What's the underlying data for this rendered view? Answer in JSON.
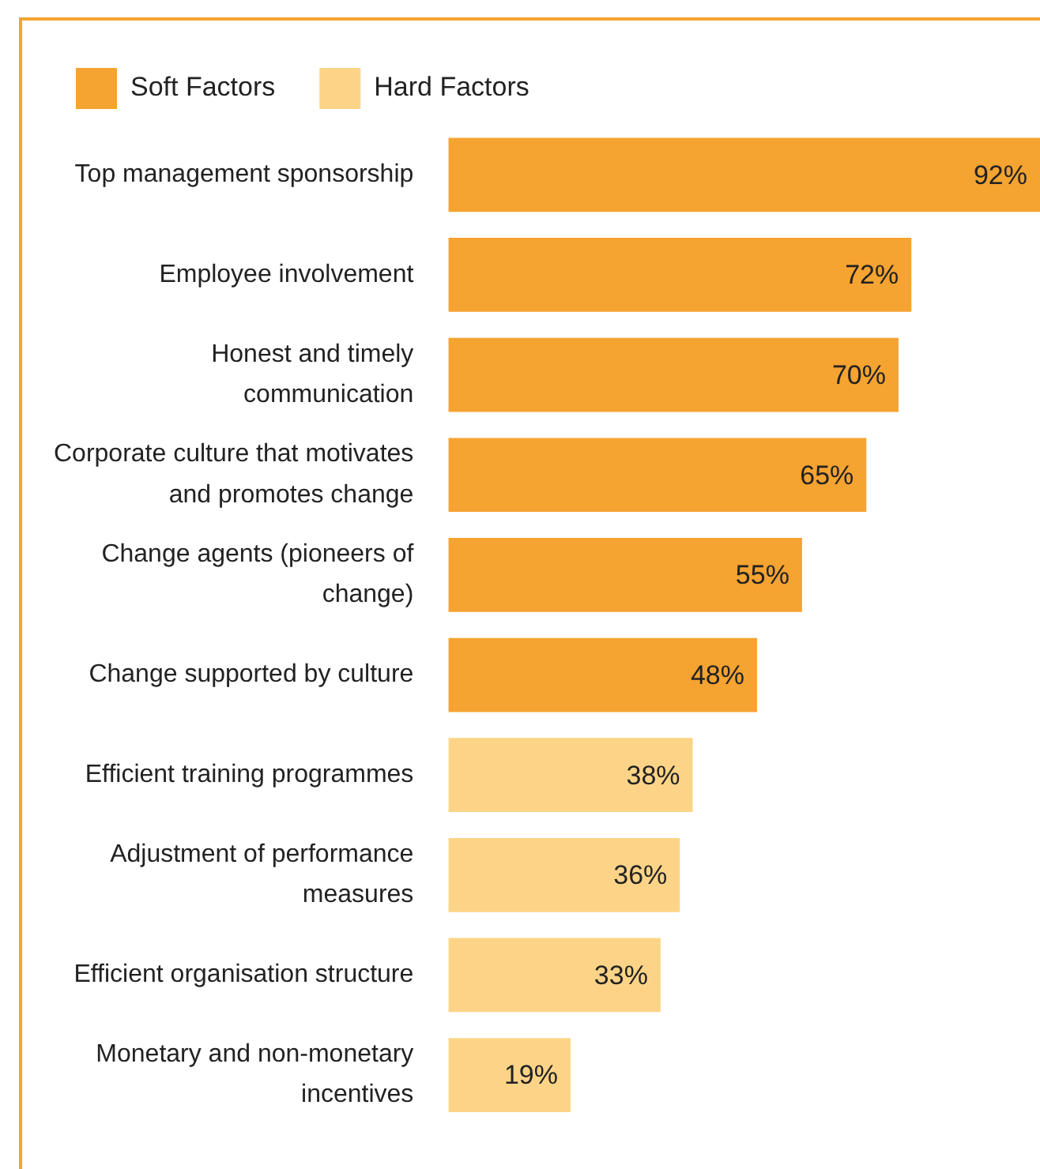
{
  "chart_data": {
    "type": "bar",
    "orientation": "horizontal",
    "legend": "top left",
    "categories": [
      "Top management sponsorship",
      "Employee involvement",
      "Honest and timely communication",
      "Corporate culture that motivates and promotes change",
      "Change agents (pioneers of change)",
      "Change supported by culture",
      "Efficient training programmes",
      "Adjustment of performance measures",
      "Efficient organisation structure",
      "Monetary and non-monetary incentives"
    ],
    "series": [
      {
        "name": "Soft Factors",
        "color": "#f5a331",
        "values": [
          92,
          72,
          70,
          65,
          55,
          48,
          null,
          null,
          null,
          null
        ],
        "value_labels": [
          "92%",
          "72%",
          "70%",
          "65%",
          "55%",
          "48%",
          null,
          null,
          null,
          null
        ]
      },
      {
        "name": "Hard Factors",
        "color": "#fdd487",
        "values": [
          null,
          null,
          null,
          null,
          null,
          null,
          38,
          36,
          33,
          19
        ],
        "value_labels": [
          null,
          null,
          null,
          null,
          null,
          null,
          "38%",
          "36%",
          "33%",
          "19%"
        ]
      }
    ]
  }
}
